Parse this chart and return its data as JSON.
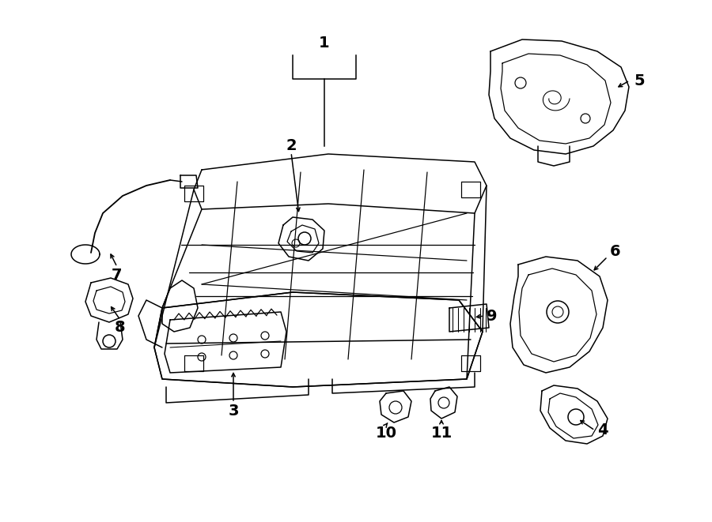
{
  "bg_color": "#ffffff",
  "line_color": "#000000",
  "fig_width": 9.0,
  "fig_height": 6.61,
  "dpi": 100,
  "lw": 1.1
}
